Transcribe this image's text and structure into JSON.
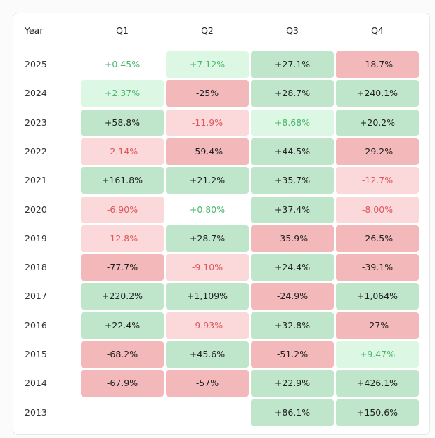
{
  "table": {
    "header": [
      "Year",
      "Q1",
      "Q2",
      "Q3",
      "Q4"
    ],
    "rows": [
      [
        "2025",
        "+0.45%",
        "+7.12%",
        "+27.1%",
        "-18.7%"
      ],
      [
        "2024",
        "+2.37%",
        "-25%",
        "+28.7%",
        "+240.1%"
      ],
      [
        "2023",
        "+58.8%",
        "-11.9%",
        "+8.68%",
        "+20.2%"
      ],
      [
        "2022",
        "-2.14%",
        "-59.4%",
        "+44.5%",
        "-29.2%"
      ],
      [
        "2021",
        "+161.8%",
        "+21.2%",
        "+35.7%",
        "-12.7%"
      ],
      [
        "2020",
        "-6.90%",
        "+0.80%",
        "+37.4%",
        "-8.00%"
      ],
      [
        "2019",
        "-12.8%",
        "+28.7%",
        "-35.9%",
        "-26.5%"
      ],
      [
        "2018",
        "-77.7%",
        "-9.10%",
        "+24.4%",
        "-39.1%"
      ],
      [
        "2017",
        "+220.2%",
        "+1,109%",
        "-24.9%",
        "+1,064%"
      ],
      [
        "2016",
        "+22.4%",
        "-9.93%",
        "+32.8%",
        "-27%"
      ],
      [
        "2015",
        "-68.2%",
        "+45.6%",
        "-51.2%",
        "+9.47%"
      ],
      [
        "2014",
        "-67.9%",
        "-57%",
        "+22.9%",
        "+426.1%"
      ],
      [
        "2013",
        "-",
        "-",
        "+86.1%",
        "+150.6%"
      ]
    ]
  }
}
